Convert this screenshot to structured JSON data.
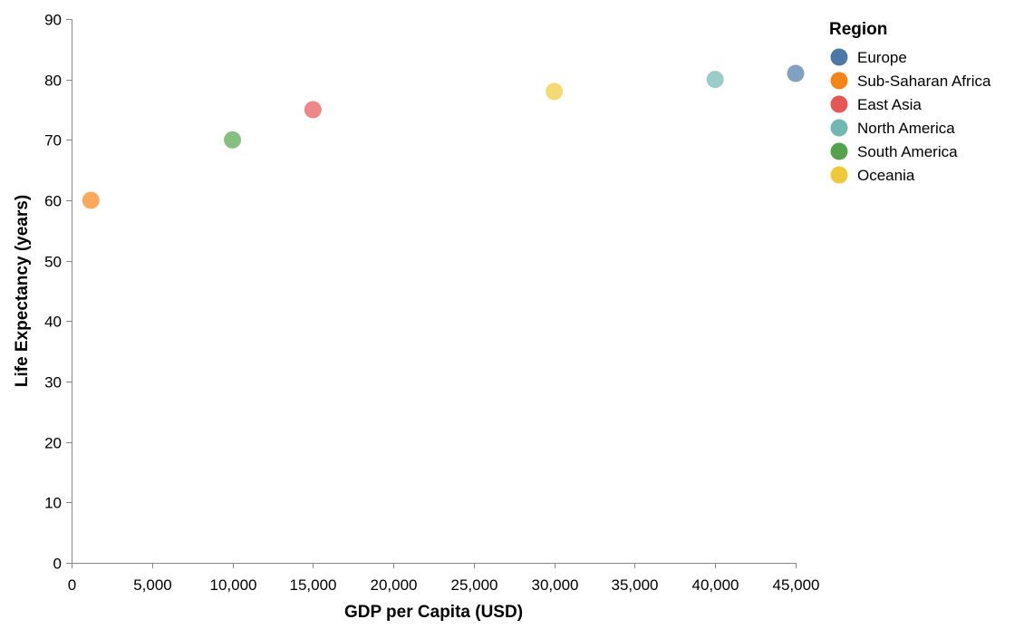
{
  "chart_data": {
    "type": "scatter",
    "xlabel": "GDP per Capita (USD)",
    "ylabel": "Life Expectancy (years)",
    "xlim": [
      0,
      45000
    ],
    "ylim": [
      0,
      90
    ],
    "x_ticks": [
      0,
      5000,
      10000,
      15000,
      20000,
      25000,
      30000,
      35000,
      40000,
      45000
    ],
    "x_tick_labels": [
      "0",
      "5,000",
      "10,000",
      "15,000",
      "20,000",
      "25,000",
      "30,000",
      "35,000",
      "40,000",
      "45,000"
    ],
    "y_ticks": [
      0,
      10,
      20,
      30,
      40,
      50,
      60,
      70,
      80,
      90
    ],
    "y_tick_labels": [
      "0",
      "10",
      "20",
      "30",
      "40",
      "50",
      "60",
      "70",
      "80",
      "90"
    ],
    "grid": false,
    "legend": {
      "title": "Region",
      "placement": "top-right"
    },
    "series": [
      {
        "name": "Europe",
        "color": "#4c78a8",
        "points": [
          {
            "x": 45000,
            "y": 81
          }
        ]
      },
      {
        "name": "Sub-Saharan Africa",
        "color": "#f58518",
        "points": [
          {
            "x": 1200,
            "y": 60
          }
        ]
      },
      {
        "name": "East Asia",
        "color": "#e45756",
        "points": [
          {
            "x": 15000,
            "y": 75
          }
        ]
      },
      {
        "name": "North America",
        "color": "#72b7b2",
        "points": [
          {
            "x": 40000,
            "y": 80
          }
        ]
      },
      {
        "name": "South America",
        "color": "#54a24b",
        "points": [
          {
            "x": 10000,
            "y": 70
          }
        ]
      },
      {
        "name": "Oceania",
        "color": "#eeca3b",
        "points": [
          {
            "x": 30000,
            "y": 78
          }
        ]
      }
    ]
  }
}
